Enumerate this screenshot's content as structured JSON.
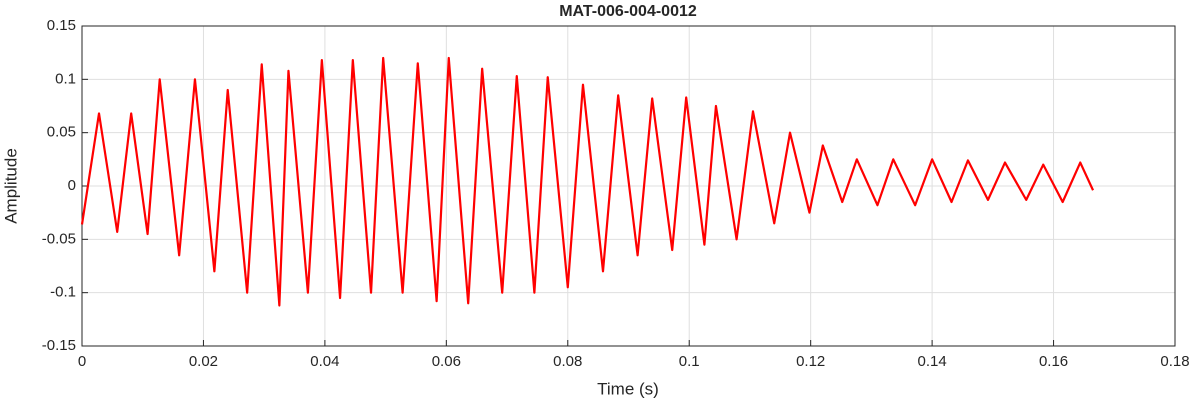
{
  "chart_data": {
    "type": "line",
    "title": "MAT-006-004-0012",
    "xlabel": "Time (s)",
    "ylabel": "Amplitude",
    "xlim": [
      0,
      0.18
    ],
    "xticks": [
      0,
      0.02,
      0.04,
      0.06,
      0.08,
      0.1,
      0.12,
      0.14,
      0.16,
      0.18
    ],
    "ylim": [
      -0.15,
      0.15
    ],
    "yticks": [
      -0.15,
      -0.1,
      -0.05,
      0,
      0.05,
      0.1,
      0.15
    ],
    "grid": true,
    "series": [
      {
        "color": "#ff0000",
        "x": [
          0,
          0.0028,
          0.0058,
          0.0081,
          0.0108,
          0.0128,
          0.016,
          0.0186,
          0.0218,
          0.024,
          0.0272,
          0.0296,
          0.0325,
          0.034,
          0.0372,
          0.0395,
          0.0425,
          0.0446,
          0.0476,
          0.0496,
          0.0528,
          0.0553,
          0.0584,
          0.0604,
          0.0636,
          0.0659,
          0.0692,
          0.0716,
          0.0745,
          0.0767,
          0.08,
          0.0825,
          0.0858,
          0.0883,
          0.0915,
          0.0939,
          0.0972,
          0.0995,
          0.1025,
          0.1044,
          0.1078,
          0.1105,
          0.114,
          0.1166,
          0.1198,
          0.122,
          0.1252,
          0.1276,
          0.131,
          0.1336,
          0.1372,
          0.14,
          0.1432,
          0.1459,
          0.1492,
          0.152,
          0.1555,
          0.1583,
          0.1615,
          0.1644,
          0.1665
        ],
        "values": [
          -0.036,
          0.068,
          -0.043,
          0.068,
          -0.045,
          0.1,
          -0.065,
          0.1,
          -0.08,
          0.09,
          -0.1,
          0.114,
          -0.112,
          0.108,
          -0.1,
          0.118,
          -0.105,
          0.118,
          -0.1,
          0.12,
          -0.1,
          0.115,
          -0.108,
          0.12,
          -0.11,
          0.11,
          -0.1,
          0.103,
          -0.1,
          0.102,
          -0.095,
          0.095,
          -0.08,
          0.085,
          -0.065,
          0.082,
          -0.06,
          0.083,
          -0.055,
          0.075,
          -0.05,
          0.07,
          -0.035,
          0.05,
          -0.025,
          0.038,
          -0.015,
          0.025,
          -0.018,
          0.025,
          -0.018,
          0.025,
          -0.015,
          0.024,
          -0.013,
          0.022,
          -0.013,
          0.02,
          -0.015,
          0.022,
          -0.004
        ]
      }
    ]
  }
}
